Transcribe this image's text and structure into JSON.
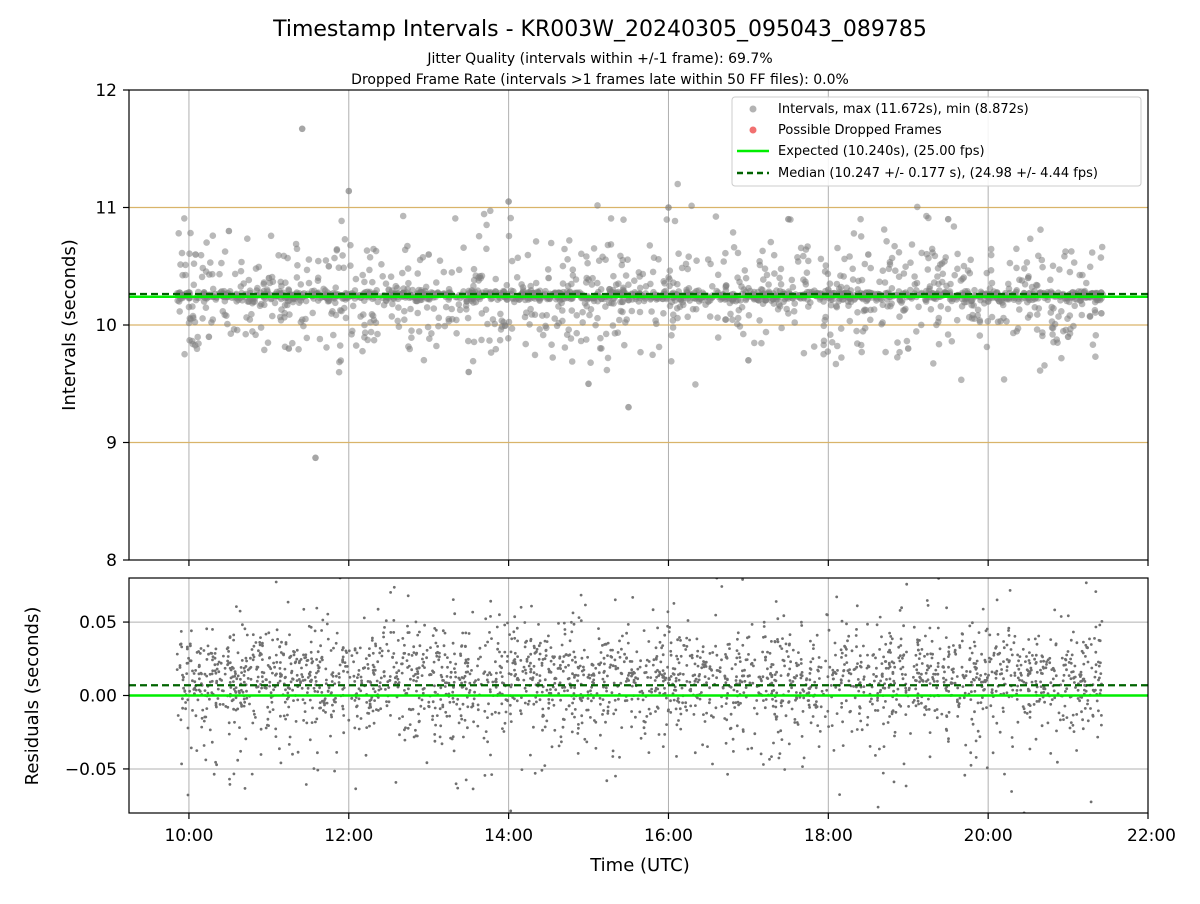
{
  "figure": {
    "title": "Timestamp Intervals - KR003W_20240305_095043_089785",
    "subtitle_line1": "Jitter Quality (intervals within +/-1 frame): 69.7%",
    "subtitle_line2": "Dropped Frame Rate (intervals >1 frames late within 50 FF files): 0.0%"
  },
  "colors": {
    "scatter": "#808080",
    "dropped": "#f06060",
    "expected": "#00ee00",
    "median": "#006400",
    "frame_band": "#d9b46a",
    "grid": "#b0b0b0"
  },
  "chart_data": [
    {
      "type": "scatter",
      "xlabel": "",
      "ylabel": "Intervals (seconds)",
      "xlim": [
        "09:15",
        "22:00"
      ],
      "ylim": [
        8,
        12
      ],
      "yticks": [
        "8",
        "9",
        "10",
        "11",
        "12"
      ],
      "xticks": [
        "10:00",
        "12:00",
        "14:00",
        "16:00",
        "18:00",
        "20:00",
        "22:00"
      ],
      "expected": 10.24,
      "median": 10.247,
      "frame_bands": [
        9.0,
        10.0,
        11.0
      ],
      "legend_position": "top-right",
      "legend": [
        "Intervals, max (11.672s), min (8.872s)",
        "Possible Dropped Frames",
        "Expected (10.240s), (25.00 fps)",
        "Median (10.247 +/- 0.177 s), (24.98 +/- 4.44 fps)"
      ],
      "time_range": [
        "09:51",
        "21:26"
      ],
      "max": 11.672,
      "min": 8.872,
      "series": [
        {
          "name": "Intervals, max (11.672s), min (8.872s)",
          "x": [
            "09:52",
            "10:05",
            "10:15",
            "10:30",
            "10:45",
            "11:00",
            "11:15",
            "11:25",
            "11:35",
            "11:45",
            "12:00",
            "12:30",
            "13:00",
            "13:30",
            "14:00",
            "14:30",
            "15:00",
            "15:30",
            "16:00",
            "16:30",
            "17:00",
            "17:30",
            "18:00",
            "18:30",
            "19:00",
            "19:30",
            "20:00",
            "20:30",
            "21:00",
            "21:25"
          ],
          "y": [
            10.25,
            10.6,
            9.9,
            10.8,
            10.2,
            10.4,
            9.8,
            11.67,
            8.87,
            10.5,
            11.14,
            10.3,
            10.6,
            9.6,
            11.05,
            10.4,
            9.5,
            9.3,
            11.0,
            10.2,
            9.7,
            10.9,
            10.3,
            10.6,
            9.8,
            10.9,
            10.2,
            10.4,
            9.9,
            10.1
          ]
        }
      ]
    },
    {
      "type": "scatter",
      "xlabel": "Time (UTC)",
      "ylabel": "Residuals (seconds)",
      "xlim": [
        "09:15",
        "22:00"
      ],
      "ylim": [
        -0.08,
        0.08
      ],
      "yticks": [
        "−0.05",
        "0.00",
        "0.05"
      ],
      "xticks": [
        "10:00",
        "12:00",
        "14:00",
        "16:00",
        "18:00",
        "20:00",
        "22:00"
      ],
      "expected": 0.0,
      "median": 0.007
    }
  ]
}
